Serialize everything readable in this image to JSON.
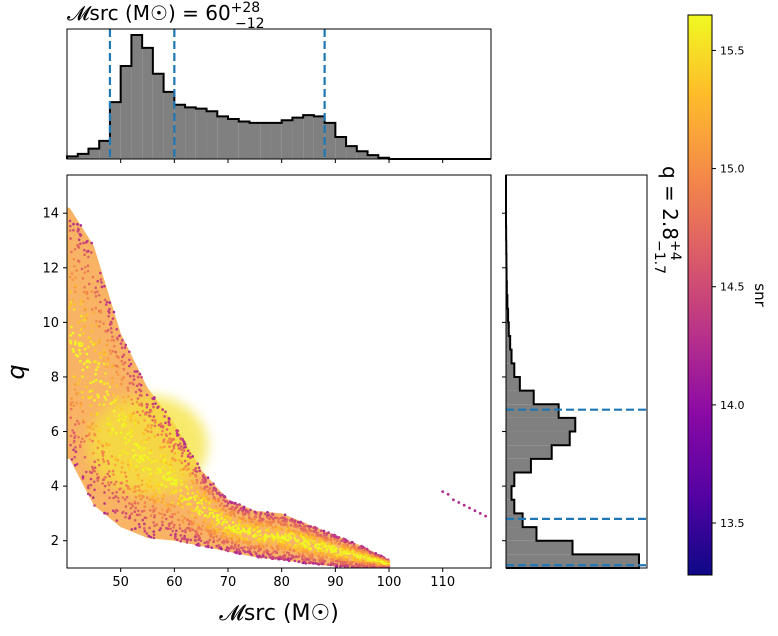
{
  "chart_data": [
    {
      "type": "scatter",
      "panel": "joint",
      "xlabel": "𝓜src (M☉)",
      "ylabel": "q",
      "xlim": [
        40,
        119
      ],
      "ylim": [
        1,
        15.4
      ],
      "xticks": [
        50,
        60,
        70,
        80,
        90,
        100,
        110
      ],
      "yticks": [
        2,
        4,
        6,
        8,
        10,
        12,
        14
      ],
      "color_by": "snr",
      "main_band": [
        {
          "x": 40.5,
          "q_low": 5.0,
          "q_high": 14.2
        },
        {
          "x": 45,
          "q_low": 3.3,
          "q_high": 12.8
        },
        {
          "x": 50,
          "q_low": 2.5,
          "q_high": 9.6
        },
        {
          "x": 55,
          "q_low": 2.1,
          "q_high": 7.6
        },
        {
          "x": 60,
          "q_low": 2.0,
          "q_high": 6.3
        },
        {
          "x": 65,
          "q_low": 1.8,
          "q_high": 4.6
        },
        {
          "x": 70,
          "q_low": 1.6,
          "q_high": 3.5
        },
        {
          "x": 75,
          "q_low": 1.4,
          "q_high": 3.1
        },
        {
          "x": 80,
          "q_low": 1.3,
          "q_high": 3.0
        },
        {
          "x": 85,
          "q_low": 1.15,
          "q_high": 2.6
        },
        {
          "x": 90,
          "q_low": 1.05,
          "q_high": 2.2
        },
        {
          "x": 95,
          "q_low": 1.0,
          "q_high": 1.8
        },
        {
          "x": 100,
          "q_low": 1.0,
          "q_high": 1.3
        }
      ],
      "dense_core": {
        "x_center": 55,
        "q_center": 5.5
      },
      "outliers": [
        {
          "x": 110,
          "q": 3.8
        },
        {
          "x": 111,
          "q": 3.7
        },
        {
          "x": 112,
          "q": 3.5
        },
        {
          "x": 113,
          "q": 3.4
        },
        {
          "x": 114,
          "q": 3.3
        },
        {
          "x": 115,
          "q": 3.2
        },
        {
          "x": 116,
          "q": 3.1
        },
        {
          "x": 117,
          "q": 3.0
        },
        {
          "x": 118,
          "q": 2.9
        }
      ]
    },
    {
      "type": "bar",
      "panel": "marginal-top",
      "title": "𝓜src (M☉) = 60",
      "title_sup": "+28",
      "title_sub": "−12",
      "xlim": [
        40,
        119
      ],
      "bin_edges": [
        40,
        42,
        44,
        46,
        48,
        50,
        52,
        54,
        56,
        58,
        60,
        62,
        64,
        66,
        68,
        70,
        72,
        74,
        76,
        78,
        80,
        82,
        84,
        86,
        88,
        90,
        92,
        94,
        96,
        98,
        100,
        102
      ],
      "values": [
        2,
        4,
        8,
        14,
        44,
        72,
        96,
        86,
        66,
        52,
        42,
        40,
        39,
        37,
        33,
        31,
        29,
        28,
        28,
        28,
        30,
        32,
        34,
        33,
        28,
        17,
        10,
        6,
        3,
        1,
        0
      ],
      "quantiles": [
        48,
        60,
        88
      ]
    },
    {
      "type": "bar",
      "panel": "marginal-right",
      "title": "q = 2.8",
      "title_sup": "+4",
      "title_sub": "−1.7",
      "ylim": [
        1,
        15.4
      ],
      "bin_edges": [
        1.0,
        1.5,
        2.0,
        2.5,
        3.0,
        3.5,
        4.0,
        4.5,
        5.0,
        5.5,
        6.0,
        6.5,
        7.0,
        7.5,
        8.0,
        8.5,
        9.0,
        9.5,
        10.0,
        10.5,
        11.0,
        11.5,
        12.0,
        12.5,
        13.0,
        13.5
      ],
      "values": [
        96,
        48,
        22,
        12,
        6,
        4,
        6,
        18,
        33,
        46,
        50,
        38,
        20,
        10,
        6,
        4,
        3,
        2,
        1.5,
        1,
        0.6,
        0.4,
        0.3,
        0.2,
        0.1
      ],
      "quantiles": [
        1.1,
        2.8,
        6.8
      ]
    },
    {
      "type": "colorbar",
      "label": "snr",
      "range": [
        13.28,
        15.65
      ],
      "ticks": [
        "13.5",
        "14.0",
        "14.5",
        "15.0",
        "15.5"
      ],
      "colormap": "plasma"
    }
  ],
  "colors": {
    "hist_fill": "#808080",
    "hist_edge": "#000000",
    "quantile_line": "#1f77b4",
    "plasma": [
      "#0d0887",
      "#5302a3",
      "#8b0aa5",
      "#b83289",
      "#db5c68",
      "#f48849",
      "#febd2a",
      "#f0f921"
    ]
  }
}
